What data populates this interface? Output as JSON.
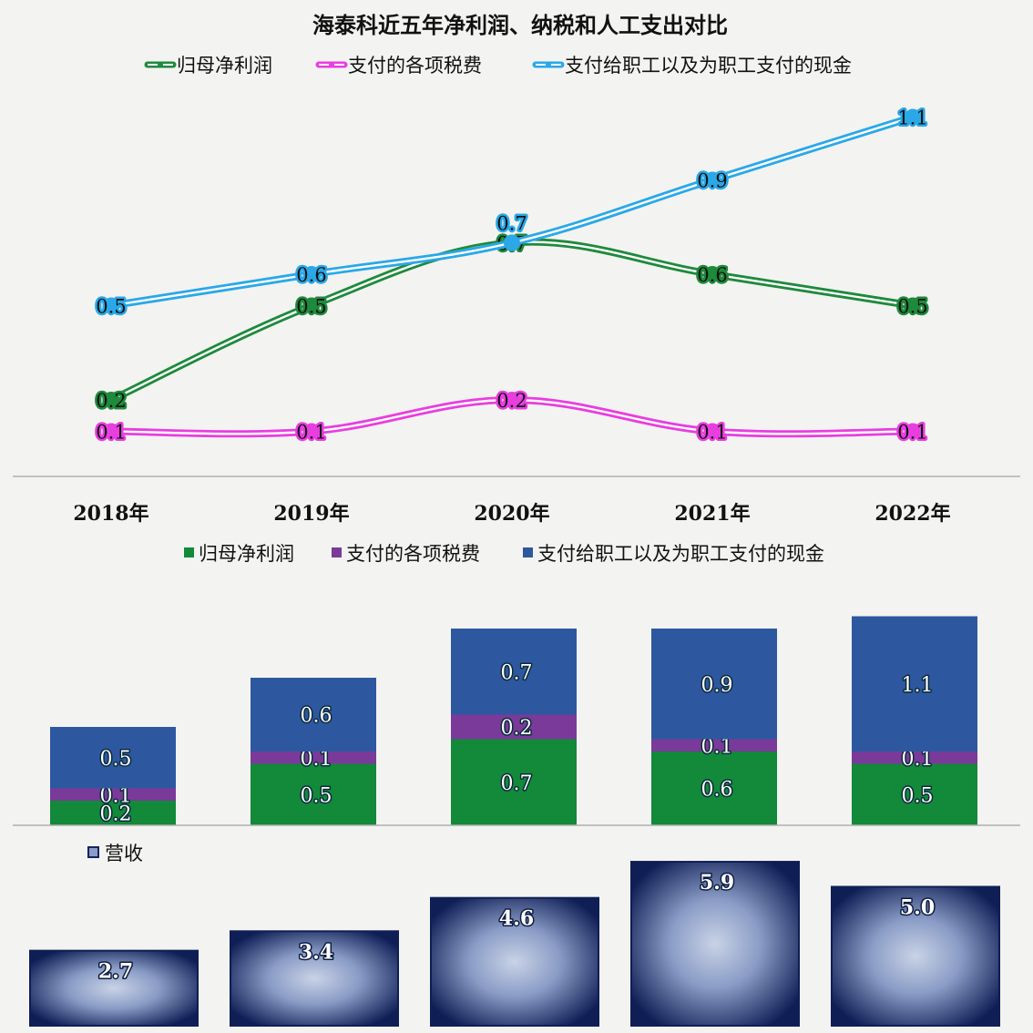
{
  "chart_data": [
    {
      "type": "line",
      "title": "海泰科近五年净利润、纳税和人工支出对比",
      "categories": [
        "2018年",
        "2019年",
        "2020年",
        "2021年",
        "2022年"
      ],
      "series": [
        {
          "name": "归母净利润",
          "values": [
            0.2,
            0.5,
            0.7,
            0.6,
            0.5
          ],
          "color": "#1e8a3c"
        },
        {
          "name": "支付的各项税费",
          "values": [
            0.1,
            0.1,
            0.2,
            0.1,
            0.1
          ],
          "color": "#e83ee0"
        },
        {
          "name": "支付给职工以及为职工支付的现金",
          "values": [
            0.5,
            0.6,
            0.7,
            0.9,
            1.1
          ],
          "color": "#2aa8e8"
        }
      ],
      "legend": "top",
      "ylim": [
        0,
        1.2
      ]
    },
    {
      "type": "bar",
      "stacked": true,
      "categories": [
        "2018年",
        "2019年",
        "2020年",
        "2021年",
        "2022年"
      ],
      "series": [
        {
          "name": "归母净利润",
          "values": [
            0.2,
            0.5,
            0.7,
            0.6,
            0.5
          ],
          "color": "#13893a"
        },
        {
          "name": "支付的各项税费",
          "values": [
            0.1,
            0.1,
            0.2,
            0.1,
            0.1
          ],
          "color": "#7a3a9a"
        },
        {
          "name": "支付给职工以及为职工支付的现金",
          "values": [
            0.5,
            0.6,
            0.7,
            0.9,
            1.1
          ],
          "color": "#2d58a0"
        }
      ],
      "legend": "top"
    },
    {
      "type": "bar",
      "categories": [
        "2018年",
        "2019年",
        "2020年",
        "2021年",
        "2022年"
      ],
      "series": [
        {
          "name": "营收",
          "values": [
            2.7,
            3.4,
            4.6,
            5.9,
            5.0
          ],
          "color": "#14245e"
        }
      ],
      "legend": "top-left",
      "ylim": [
        0,
        6.6
      ]
    }
  ]
}
